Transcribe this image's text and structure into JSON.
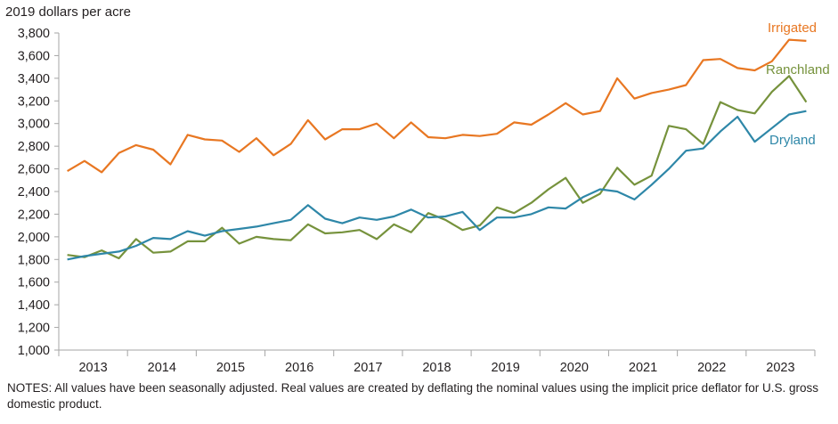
{
  "chart_data": {
    "type": "line",
    "title": "",
    "ylabel": "2019 dollars per acre",
    "xlabel": "",
    "ylim": [
      1000,
      3800
    ],
    "yticks": [
      1000,
      1200,
      1400,
      1600,
      1800,
      2000,
      2200,
      2400,
      2600,
      2800,
      3000,
      3200,
      3400,
      3600,
      3800
    ],
    "ytick_labels": [
      "1,000",
      "1,200",
      "1,400",
      "1,600",
      "1,800",
      "2,000",
      "2,200",
      "2,400",
      "2,600",
      "2,800",
      "3,000",
      "3,200",
      "3,400",
      "3,600",
      "3,800"
    ],
    "years": [
      "2013",
      "2014",
      "2015",
      "2016",
      "2017",
      "2018",
      "2019",
      "2020",
      "2021",
      "2022",
      "2023"
    ],
    "x_label": "quarter",
    "quarters_per_year": 4,
    "first_quarter": "2013 Q1",
    "gridlines": false,
    "series": [
      {
        "name": "Irrigated",
        "color": "#e87722",
        "values": [
          2580,
          2670,
          2570,
          2740,
          2810,
          2770,
          2640,
          2900,
          2860,
          2850,
          2750,
          2870,
          2720,
          2820,
          3030,
          2860,
          2950,
          2950,
          3000,
          2870,
          3010,
          2880,
          2870,
          2900,
          2890,
          2910,
          3010,
          2990,
          3080,
          3180,
          3080,
          3110,
          3400,
          3220,
          3270,
          3300,
          3340,
          3560,
          3570,
          3490,
          3470,
          3550,
          3740,
          3730
        ]
      },
      {
        "name": "Ranchland",
        "color": "#76923c",
        "values": [
          1840,
          1820,
          1880,
          1810,
          1980,
          1860,
          1870,
          1960,
          1960,
          2080,
          1940,
          2000,
          1980,
          1970,
          2110,
          2030,
          2040,
          2060,
          1980,
          2110,
          2040,
          2210,
          2150,
          2060,
          2100,
          2260,
          2210,
          2300,
          2420,
          2520,
          2300,
          2380,
          2610,
          2460,
          2540,
          2980,
          2950,
          2820,
          3190,
          3120,
          3090,
          3280,
          3420,
          3190
        ]
      },
      {
        "name": "Dryland",
        "color": "#2e87a8",
        "values": [
          1800,
          1830,
          1850,
          1870,
          1920,
          1990,
          1980,
          2050,
          2010,
          2050,
          2070,
          2090,
          2120,
          2150,
          2280,
          2160,
          2120,
          2170,
          2150,
          2180,
          2240,
          2170,
          2180,
          2220,
          2060,
          2170,
          2170,
          2200,
          2260,
          2250,
          2350,
          2420,
          2400,
          2330,
          2460,
          2600,
          2760,
          2780,
          2930,
          3060,
          2840,
          2960,
          3080,
          3110
        ]
      }
    ]
  },
  "notes": "NOTES: All values have been seasonally adjusted. Real values are created by deflating the nominal values using the implicit price deflator for U.S. gross domestic product."
}
